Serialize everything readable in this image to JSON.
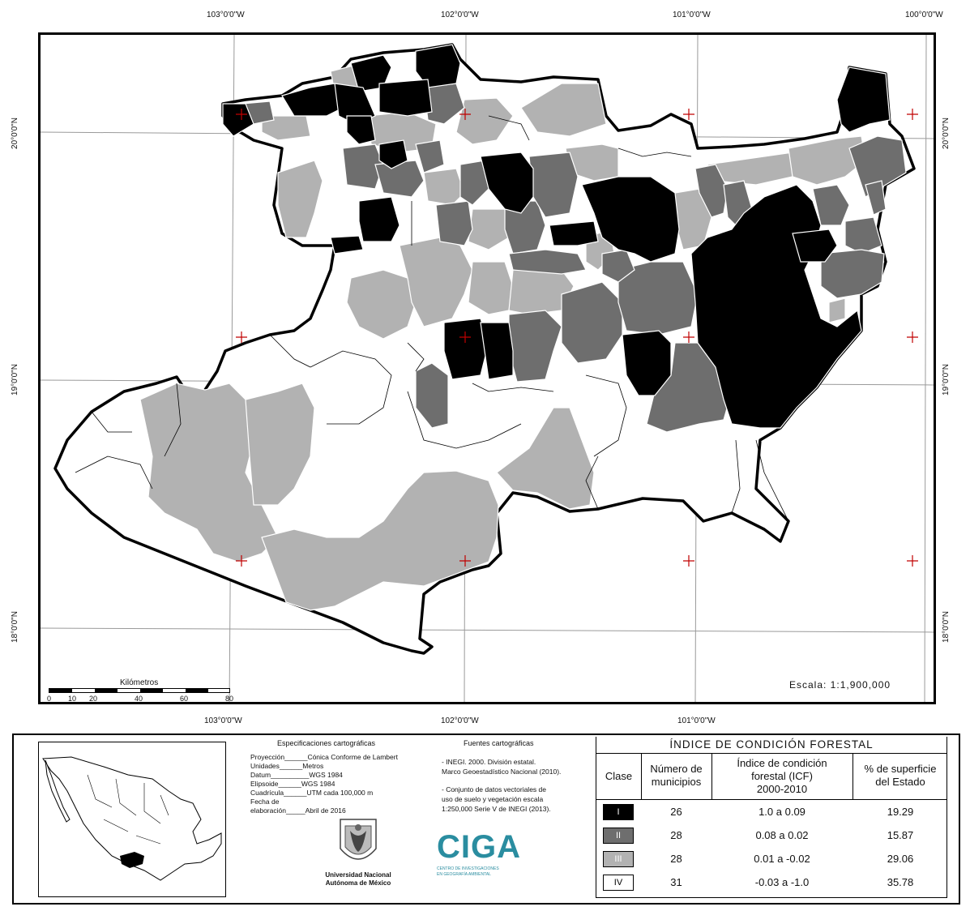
{
  "coords": {
    "top": [
      "103°0'0\"W",
      "102°0'0\"W",
      "101°0'0\"W",
      "100°0'0\"W"
    ],
    "bottom": [
      "103°0'0\"W",
      "102°0'0\"W",
      "101°0'0\"W"
    ],
    "left": [
      "20°0'0\"N",
      "19°0'0\"N",
      "18°0'0\"N"
    ],
    "right": [
      "20°0'0\"N",
      "19°0'0\"N",
      "18°0'0\"N"
    ]
  },
  "scalebar": {
    "title": "Kilómetros",
    "ticks": [
      "0",
      "10",
      "20",
      "40",
      "60",
      "80"
    ]
  },
  "scale_text": "Escala: 1:1,900,000",
  "specs": {
    "title": "Especificaciones cartográficas",
    "rows": [
      {
        "label": "Proyección",
        "value": "Cónica Conforme de Lambert"
      },
      {
        "label": "Unidades",
        "value": "Metros"
      },
      {
        "label": "Datum",
        "value": "WGS 1984"
      },
      {
        "label": "Elipsoide",
        "value": "WGS 1984"
      },
      {
        "label": "Cuadrícula",
        "value": "UTM cada 100,000 m"
      },
      {
        "label": "Fecha de",
        "value": ""
      },
      {
        "label": "elaboración",
        "value": "Abril de 2016"
      }
    ]
  },
  "sources": {
    "title": "Fuentes cartográficas",
    "lines": [
      "- INEGI. 2000. División estatal.",
      "Marco Geoestadístico Nacional (2010).",
      "",
      "- Conjunto de datos vectoriales de",
      "uso de suelo y vegetación escala",
      "1:250,000 Serie V de INEGI (2013)."
    ]
  },
  "logos": {
    "unam_line1": "Universidad Nacional",
    "unam_line2": "Autónoma de México",
    "ciga": "CIGA",
    "ciga_sub1": "CENTRO DE INVESTIGACIONES",
    "ciga_sub2": "EN GEOGRAFÍA AMBIENTAL"
  },
  "legend": {
    "title": "ÍNDICE DE CONDICIÓN FORESTAL",
    "headers": {
      "clase": "Clase",
      "num_line1": "Número de",
      "num_line2": "municipios",
      "icf_line1": "Índice de condición",
      "icf_line2": "forestal (ICF)",
      "icf_line3": "2000-2010",
      "pct_line1": "% de superficie",
      "pct_line2": "del Estado"
    },
    "rows": [
      {
        "clase": "I",
        "color": "#000000",
        "municipios": "26",
        "icf": "1.0 a 0.09",
        "pct": "19.29"
      },
      {
        "clase": "II",
        "color": "#6e6e6e",
        "municipios": "28",
        "icf": "0.08 a 0.02",
        "pct": "15.87"
      },
      {
        "clase": "III",
        "color": "#b2b2b2",
        "municipios": "28",
        "icf": "0.01 a -0.02",
        "pct": "29.06"
      },
      {
        "clase": "IV",
        "color": "#ffffff",
        "municipios": "31",
        "icf": "-0.03 a -1.0",
        "pct": "35.78"
      }
    ]
  }
}
